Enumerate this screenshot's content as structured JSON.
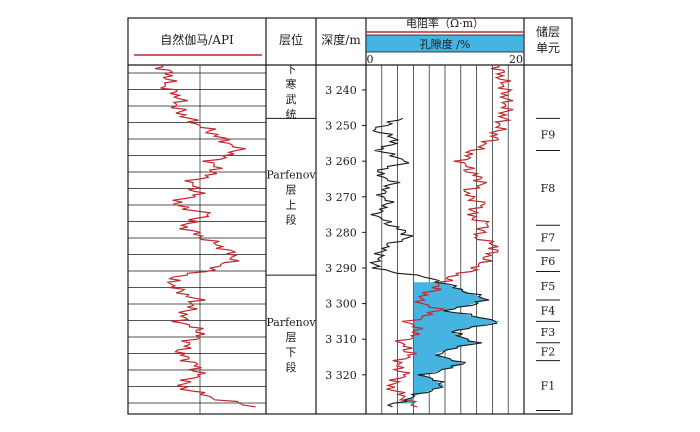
{
  "headers": {
    "gr": "自然伽马/API",
    "layer": "层位",
    "depth": "深度/m",
    "resistivity": "电阻率（Ω·m）",
    "porosity": "孔隙度 /%",
    "res_min": "0",
    "res_max": "20",
    "unit_line1": "储层",
    "unit_line2": "单元"
  },
  "layers": [
    {
      "name": [
        "下",
        "寒",
        "武",
        "统"
      ],
      "top": 3233,
      "bottom": 3248
    },
    {
      "name": [
        "Parfenov",
        "层",
        "上",
        "段"
      ],
      "top": 3248,
      "bottom": 3292
    },
    {
      "name": [
        "Parfenov",
        "层",
        "下",
        "段"
      ],
      "top": 3292,
      "bottom": 3331
    }
  ],
  "depth_ticks": [
    "3 240",
    "3 250",
    "3 260",
    "3 270",
    "3 280",
    "3 290",
    "3 300",
    "3 310",
    "3 320"
  ],
  "units": [
    "F9",
    "F8",
    "F7",
    "F6",
    "F5",
    "F4",
    "F3",
    "F2",
    "F1"
  ],
  "colors": {
    "gr_curve": "#c0282d",
    "resistivity_curve": "#c0282d",
    "porosity_curve": "#1a1a1a",
    "porosity_fill": "#45b4e0",
    "grid": "#1a1a1a"
  },
  "chart_data": {
    "type": "line",
    "depth_range": [
      3233,
      3331
    ],
    "depth_unit": "m",
    "series": [
      {
        "name": "自然伽马/API",
        "depth": [
          3233,
          3236,
          3239,
          3242,
          3245,
          3248,
          3251,
          3254,
          3257,
          3260,
          3263,
          3266,
          3269,
          3272,
          3275,
          3278,
          3281,
          3284,
          3287,
          3290,
          3293,
          3296,
          3299,
          3302,
          3305,
          3308,
          3311,
          3314,
          3317,
          3320,
          3323,
          3326,
          3329
        ],
        "value": [
          0.2,
          0.28,
          0.24,
          0.36,
          0.33,
          0.42,
          0.58,
          0.72,
          0.85,
          0.62,
          0.66,
          0.44,
          0.52,
          0.3,
          0.6,
          0.38,
          0.52,
          0.7,
          0.82,
          0.66,
          0.28,
          0.33,
          0.5,
          0.42,
          0.36,
          0.55,
          0.43,
          0.36,
          0.48,
          0.52,
          0.35,
          0.58,
          0.96
        ]
      },
      {
        "name": "电阻率（Ω·m）",
        "xlim": [
          0,
          20
        ],
        "depth": [
          3233,
          3240,
          3245,
          3248,
          3251,
          3254,
          3257,
          3260,
          3263,
          3266,
          3269,
          3272,
          3275,
          3278,
          3281,
          3284,
          3287,
          3290,
          3293,
          3296,
          3299,
          3302,
          3305,
          3308,
          3311,
          3314,
          3317,
          3320,
          3323,
          3326,
          3329
        ],
        "value": [
          17.5,
          18.5,
          18.7,
          18.2,
          17.6,
          16.8,
          14.2,
          12.6,
          13.8,
          15.6,
          12.9,
          15.5,
          13.6,
          16.2,
          14.4,
          17.4,
          16.1,
          14.6,
          10.5,
          8.8,
          6.4,
          9.5,
          5.4,
          6.7,
          4.2,
          5.7,
          3.6,
          4.8,
          2.6,
          4.5,
          6.2
        ]
      },
      {
        "name": "孔隙度 /%",
        "xlim": [
          0,
          20
        ],
        "depth": [
          3248,
          3251,
          3254,
          3257,
          3260,
          3263,
          3266,
          3269,
          3272,
          3275,
          3278,
          3281,
          3284,
          3287,
          3290,
          3293,
          3296,
          3299,
          3302,
          3305,
          3308,
          3311,
          3314,
          3317,
          3320,
          3323,
          3326,
          3329
        ],
        "value": [
          4.5,
          0.5,
          3.8,
          1.2,
          5.2,
          0.8,
          3.2,
          1.5,
          2.6,
          0.6,
          3.0,
          5.6,
          2.0,
          1.2,
          0.5,
          8.5,
          12.4,
          16.2,
          10.5,
          17.8,
          11.2,
          14.5,
          9.0,
          12.8,
          7.4,
          10.2,
          6.0,
          2.5
        ]
      }
    ],
    "pay_zone": {
      "top": 3294,
      "bottom": 3328,
      "shade": "porosity",
      "baseline": 6.0
    }
  }
}
